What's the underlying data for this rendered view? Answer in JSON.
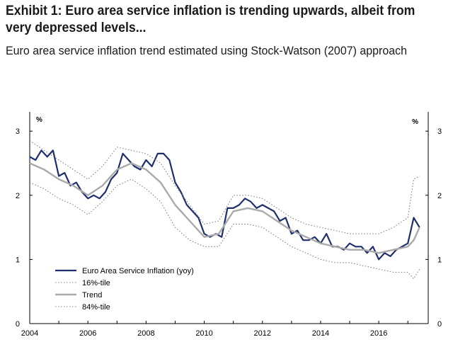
{
  "header": {
    "title": "Exhibit 1: Euro area service inflation is trending upwards, albeit from very depressed levels...",
    "subtitle": "Euro area service inflation trend estimated using Stock-Watson (2007) approach"
  },
  "colors": {
    "actual": "#1f2f6e",
    "trend": "#aaaaaa",
    "band": "#808080",
    "axis": "#000000"
  },
  "chart_data": {
    "type": "line",
    "title": "Euro area service inflation trend estimated using Stock-Watson (2007) approach",
    "xlabel": "",
    "ylabel_left": "%",
    "ylabel_right": "%",
    "xlim": [
      2004,
      2017.7
    ],
    "ylim": [
      0,
      3.3
    ],
    "x_ticks": [
      2004,
      2006,
      2008,
      2010,
      2012,
      2014,
      2016
    ],
    "x_tick_labels": [
      "2004",
      "2006",
      "2008",
      "2010",
      "2012",
      "2014",
      "2016"
    ],
    "y_ticks": [
      0,
      1,
      2,
      3
    ],
    "y_tick_labels": [
      "0",
      "1",
      "2",
      "3"
    ],
    "legend_position": "bottom-left",
    "series": [
      {
        "name": "Euro Area Service Inflation (yoy)",
        "style": "solid-dark",
        "x": [
          2004.0,
          2004.2,
          2004.4,
          2004.6,
          2004.8,
          2005.0,
          2005.2,
          2005.4,
          2005.6,
          2005.8,
          2006.0,
          2006.2,
          2006.4,
          2006.6,
          2006.8,
          2007.0,
          2007.2,
          2007.4,
          2007.6,
          2007.8,
          2008.0,
          2008.2,
          2008.4,
          2008.6,
          2008.8,
          2009.0,
          2009.2,
          2009.4,
          2009.6,
          2009.8,
          2010.0,
          2010.2,
          2010.4,
          2010.6,
          2010.8,
          2011.0,
          2011.2,
          2011.4,
          2011.6,
          2011.8,
          2012.0,
          2012.2,
          2012.4,
          2012.6,
          2012.8,
          2013.0,
          2013.2,
          2013.4,
          2013.6,
          2013.8,
          2014.0,
          2014.2,
          2014.4,
          2014.6,
          2014.8,
          2015.0,
          2015.2,
          2015.4,
          2015.6,
          2015.8,
          2016.0,
          2016.2,
          2016.4,
          2016.6,
          2016.8,
          2017.0,
          2017.2,
          2017.4
        ],
        "values": [
          2.6,
          2.55,
          2.7,
          2.6,
          2.7,
          2.3,
          2.35,
          2.15,
          2.2,
          2.05,
          1.95,
          2.0,
          1.95,
          2.05,
          2.25,
          2.35,
          2.65,
          2.55,
          2.45,
          2.4,
          2.55,
          2.45,
          2.65,
          2.65,
          2.55,
          2.2,
          2.05,
          1.85,
          1.75,
          1.65,
          1.4,
          1.35,
          1.4,
          1.35,
          1.8,
          1.8,
          1.85,
          1.95,
          1.9,
          1.8,
          1.85,
          1.8,
          1.75,
          1.6,
          1.65,
          1.4,
          1.45,
          1.3,
          1.3,
          1.35,
          1.25,
          1.4,
          1.2,
          1.2,
          1.15,
          1.25,
          1.2,
          1.2,
          1.1,
          1.2,
          1.0,
          1.1,
          1.05,
          1.15,
          1.2,
          1.25,
          1.65,
          1.5
        ]
      },
      {
        "name": "16%-tile",
        "style": "dotted",
        "x": [
          2004.0,
          2004.5,
          2005.0,
          2005.5,
          2006.0,
          2006.5,
          2007.0,
          2007.5,
          2008.0,
          2008.5,
          2009.0,
          2009.5,
          2010.0,
          2010.5,
          2011.0,
          2011.5,
          2012.0,
          2012.5,
          2013.0,
          2013.5,
          2014.0,
          2014.5,
          2015.0,
          2015.5,
          2016.0,
          2016.5,
          2017.0,
          2017.2,
          2017.4
        ],
        "values": [
          2.2,
          2.1,
          1.95,
          1.85,
          1.7,
          1.9,
          2.15,
          2.25,
          2.1,
          1.9,
          1.5,
          1.3,
          1.2,
          1.2,
          1.55,
          1.55,
          1.5,
          1.35,
          1.2,
          1.1,
          1.0,
          0.95,
          0.95,
          0.9,
          0.85,
          0.8,
          0.8,
          0.7,
          0.85
        ]
      },
      {
        "name": "Trend",
        "style": "solid-gray",
        "x": [
          2004.0,
          2004.5,
          2005.0,
          2005.5,
          2006.0,
          2006.5,
          2007.0,
          2007.5,
          2008.0,
          2008.5,
          2009.0,
          2009.5,
          2010.0,
          2010.5,
          2011.0,
          2011.5,
          2012.0,
          2012.5,
          2013.0,
          2013.5,
          2014.0,
          2014.5,
          2015.0,
          2015.5,
          2016.0,
          2016.5,
          2017.0,
          2017.2,
          2017.4
        ],
        "values": [
          2.5,
          2.4,
          2.25,
          2.15,
          2.0,
          2.15,
          2.4,
          2.5,
          2.4,
          2.2,
          1.85,
          1.6,
          1.35,
          1.4,
          1.75,
          1.8,
          1.75,
          1.6,
          1.45,
          1.35,
          1.25,
          1.2,
          1.15,
          1.15,
          1.1,
          1.15,
          1.2,
          1.3,
          1.5
        ]
      },
      {
        "name": "84%-tile",
        "style": "dotted",
        "x": [
          2004.0,
          2004.5,
          2005.0,
          2005.5,
          2006.0,
          2006.5,
          2007.0,
          2007.5,
          2008.0,
          2008.5,
          2009.0,
          2009.5,
          2010.0,
          2010.5,
          2011.0,
          2011.5,
          2012.0,
          2012.5,
          2013.0,
          2013.5,
          2014.0,
          2014.5,
          2015.0,
          2015.5,
          2016.0,
          2016.5,
          2017.0,
          2017.2,
          2017.4
        ],
        "values": [
          2.85,
          2.7,
          2.55,
          2.4,
          2.25,
          2.45,
          2.75,
          2.7,
          2.65,
          2.5,
          2.15,
          1.85,
          1.55,
          1.6,
          2.0,
          2.0,
          1.95,
          1.8,
          1.65,
          1.55,
          1.5,
          1.45,
          1.4,
          1.4,
          1.4,
          1.5,
          1.65,
          2.25,
          2.3
        ]
      }
    ]
  }
}
